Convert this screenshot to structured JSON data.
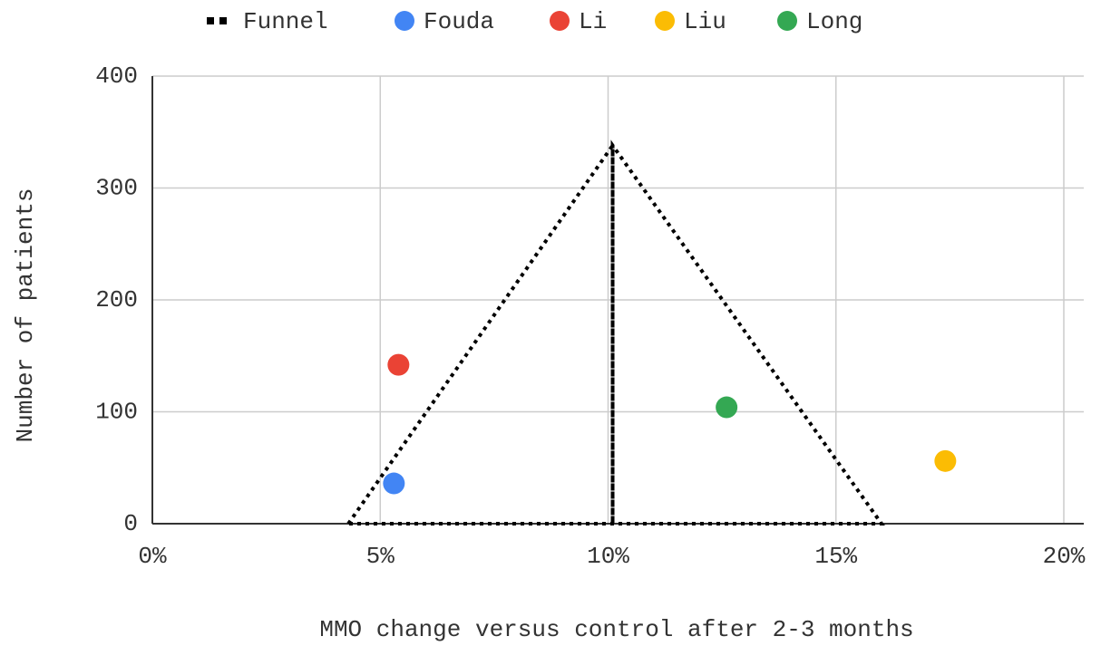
{
  "chart_data": {
    "type": "scatter",
    "x_label": "MMO change versus control after 2-3 months",
    "y_label": "Number of patients",
    "xlim": [
      0,
      20
    ],
    "xticks": [
      {
        "value": 0,
        "label": "0%"
      },
      {
        "value": 5,
        "label": "5%"
      },
      {
        "value": 10,
        "label": "10%"
      },
      {
        "value": 15,
        "label": "15%"
      },
      {
        "value": 20,
        "label": "20%"
      }
    ],
    "ylim": [
      0,
      400
    ],
    "yticks": [
      0,
      100,
      200,
      300,
      400
    ],
    "grid": true,
    "legend": "top",
    "series": [
      {
        "name": "Funnel",
        "color": "#000000",
        "dash": "dotted",
        "x": [
          4.3,
          10.1,
          10.1,
          10.1,
          16,
          4.3
        ],
        "values": [
          0,
          338,
          0,
          338,
          0,
          0
        ]
      },
      {
        "name": "Fouda",
        "color": "#4285f4",
        "x": [
          5.3
        ],
        "values": [
          36
        ]
      },
      {
        "name": "Li",
        "color": "#ea4335",
        "x": [
          5.4
        ],
        "values": [
          142
        ]
      },
      {
        "name": "Liu",
        "color": "#fbbc04",
        "x": [
          17.4
        ],
        "values": [
          56
        ]
      },
      {
        "name": "Long",
        "color": "#34a853",
        "x": [
          12.6
        ],
        "values": [
          104
        ]
      }
    ]
  }
}
